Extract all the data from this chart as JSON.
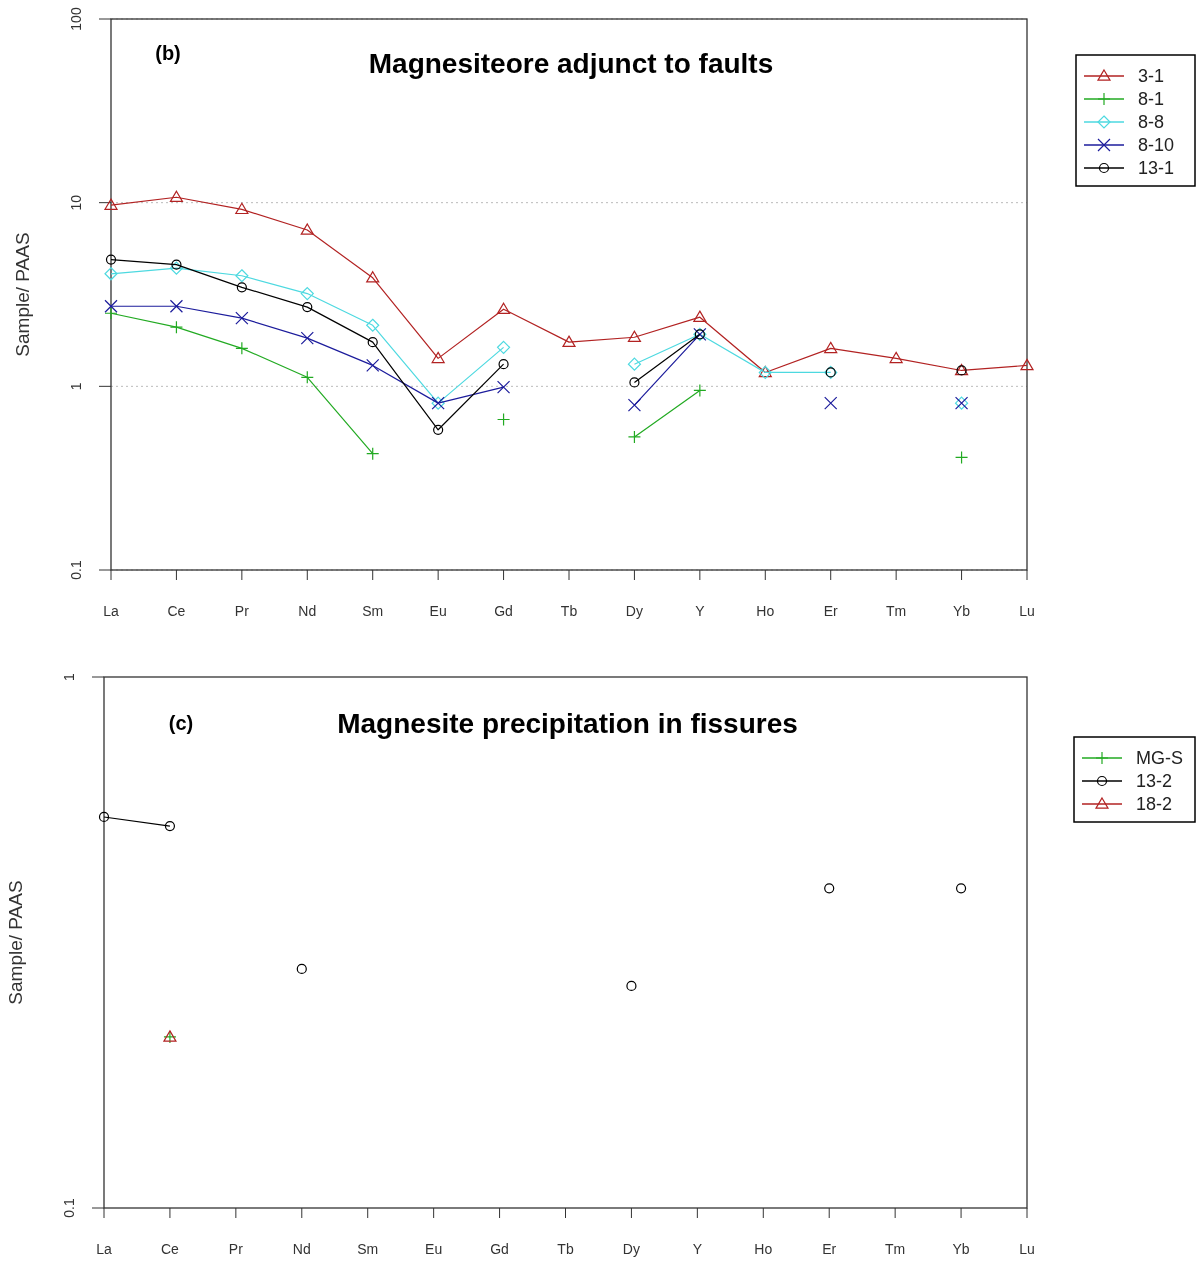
{
  "chart_data": [
    {
      "type": "line",
      "title": "Magnesiteore adjunct to faults",
      "annotations": [
        "(b)"
      ],
      "ylabel": "Sample/ PAAS",
      "categories": [
        "La",
        "Ce",
        "Pr",
        "Nd",
        "Sm",
        "Eu",
        "Gd",
        "Tb",
        "Dy",
        "Y",
        "Ho",
        "Er",
        "Tm",
        "Yb",
        "Lu"
      ],
      "log": "y",
      "ylim": [
        0.1,
        100
      ],
      "yticks": [
        0.1,
        1,
        10,
        100
      ],
      "grid": "y",
      "legend": "top right",
      "series": [
        {
          "name": "3-1",
          "color": "#b22222",
          "marker": "triangle",
          "values": [
            9.7,
            10.7,
            9.2,
            7.1,
            3.9,
            1.42,
            2.63,
            1.74,
            1.85,
            2.38,
            1.19,
            1.61,
            1.42,
            1.22,
            1.3
          ]
        },
        {
          "name": "8-1",
          "color": "#22aa22",
          "marker": "cross",
          "values": [
            2.5,
            2.1,
            1.61,
            1.12,
            0.43,
            null,
            0.66,
            null,
            0.53,
            0.95,
            null,
            null,
            null,
            0.41,
            null
          ]
        },
        {
          "name": "8-8",
          "color": "#4dd9e0",
          "marker": "diamond",
          "values": [
            4.1,
            4.4,
            4.0,
            3.2,
            2.15,
            0.81,
            1.63,
            null,
            1.32,
            1.92,
            1.19,
            1.19,
            null,
            0.81,
            null
          ]
        },
        {
          "name": "8-10",
          "color": "#1c1c9c",
          "marker": "x",
          "values": [
            2.73,
            2.73,
            2.35,
            1.83,
            1.3,
            0.81,
            0.99,
            null,
            0.79,
            1.92,
            null,
            0.81,
            null,
            0.81,
            null
          ]
        },
        {
          "name": "13-1",
          "color": "#000000",
          "marker": "circle",
          "values": [
            4.9,
            4.6,
            3.46,
            2.7,
            1.74,
            0.58,
            1.32,
            null,
            1.05,
            1.92,
            null,
            1.19,
            null,
            1.22,
            null
          ]
        }
      ]
    },
    {
      "type": "line",
      "title": "Magnesite precipitation in fissures",
      "annotations": [
        "(c)"
      ],
      "ylabel": "Sample/ PAAS",
      "categories": [
        "La",
        "Ce",
        "Pr",
        "Nd",
        "Sm",
        "Eu",
        "Gd",
        "Tb",
        "Dy",
        "Y",
        "Ho",
        "Er",
        "Tm",
        "Yb",
        "Lu"
      ],
      "log": "y",
      "ylim": [
        0.1,
        1
      ],
      "yticks": [
        0.1,
        1
      ],
      "grid": false,
      "legend": "top right",
      "series": [
        {
          "name": "MG-S",
          "color": "#22aa22",
          "marker": "cross",
          "values": [
            null,
            0.21,
            null,
            null,
            null,
            null,
            null,
            null,
            null,
            null,
            null,
            null,
            null,
            null,
            null
          ]
        },
        {
          "name": "13-2",
          "color": "#000000",
          "marker": "circle",
          "values": [
            0.545,
            0.524,
            null,
            0.282,
            null,
            null,
            null,
            null,
            0.262,
            null,
            null,
            0.4,
            null,
            0.4,
            null
          ]
        },
        {
          "name": "18-2",
          "color": "#b22222",
          "marker": "triangle",
          "values": [
            null,
            0.21,
            null,
            null,
            null,
            null,
            null,
            null,
            null,
            null,
            null,
            null,
            null,
            null,
            null
          ]
        }
      ]
    }
  ]
}
